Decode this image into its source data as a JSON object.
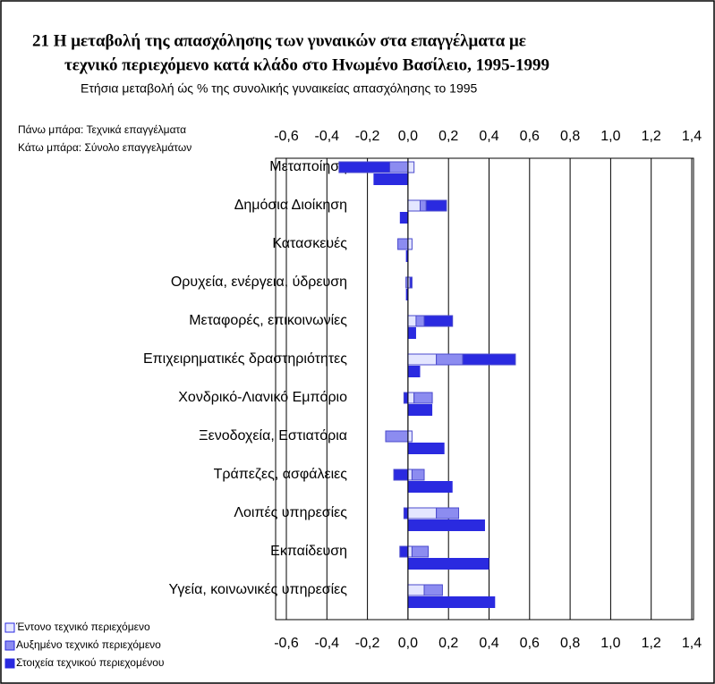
{
  "chart_data": {
    "type": "stacked-hbar",
    "title": [
      "21  Η μεταβολή της απασχόλησης των γυναικών στα επαγγέλματα με",
      "τεχνικό περιεχόμενο κατά κλάδο στο Ηνωμένο Βασίλειο, 1995-1999"
    ],
    "subtitle": "Ετήσια μεταβολή ώς % της συνολικής γυναικείας απασχόλησης το 1995",
    "notes": [
      "Πάνω μπάρα: Τεχνικά επαγγέλματα",
      "Κάτω μπάρα: Σύνολο επαγγελμάτων"
    ],
    "categories": [
      "Μεταποίηση",
      "Δημόσια Διοίκηση",
      "Κατασκευές",
      "Ορυχεία, ενέργεια, ύδρευση",
      "Μεταφορές, επικοινωνίες",
      "Επιχειρηματικές δραστηριότητες",
      "Χονδρικό-Λιανικό Εμπόριο",
      "Ξενοδοχεία, Εστιατόρια",
      "Τράπεζες, ασφάλειες",
      "Λοιπές υπηρεσίες",
      "Εκπαίδευση",
      "Υγεία, κοινωνικές υπηρεσίες"
    ],
    "series": [
      {
        "name": "Έντονο τεχνικό περιεχόμενο",
        "color": "#e4e6ff",
        "values": [
          0.03,
          0.06,
          0.02,
          0.01,
          0.04,
          0.14,
          0.03,
          0.02,
          0.02,
          0.14,
          0.02,
          0.08
        ]
      },
      {
        "name": "Αυξημένο τεχνικό περιεχόμενο",
        "color": "#8c8cf0",
        "values": [
          -0.09,
          0.03,
          -0.05,
          -0.01,
          0.04,
          0.13,
          0.09,
          -0.11,
          0.06,
          0.11,
          0.08,
          0.09
        ]
      },
      {
        "name": "Στοιχεία τεχνικού περιεχομένου",
        "color": "#2a2ae0",
        "values": [
          -0.25,
          0.1,
          0,
          0.01,
          0.14,
          0.26,
          -0.02,
          0,
          -0.07,
          -0.02,
          -0.04,
          0
        ]
      }
    ],
    "totals": {
      "color": "#2a2ae0",
      "values": [
        -0.17,
        -0.04,
        -0.01,
        -0.01,
        0.04,
        0.06,
        0.12,
        0.18,
        0.22,
        0.38,
        0.4,
        0.43
      ]
    },
    "xlim": [
      -0.6,
      1.4
    ],
    "xticks": [
      {
        "value": -0.6,
        "label": "-0,6"
      },
      {
        "value": -0.4,
        "label": "-0,4"
      },
      {
        "value": -0.2,
        "label": "-0,2"
      },
      {
        "value": 0,
        "label": "0,0"
      },
      {
        "value": 0.2,
        "label": "0,2"
      },
      {
        "value": 0.4,
        "label": "0,4"
      },
      {
        "value": 0.6,
        "label": "0,6"
      },
      {
        "value": 0.8,
        "label": "0,8"
      },
      {
        "value": 1.0,
        "label": "1,0"
      },
      {
        "value": 1.2,
        "label": "1,2"
      },
      {
        "value": 1.4,
        "label": "1,4"
      }
    ],
    "grid": true
  }
}
